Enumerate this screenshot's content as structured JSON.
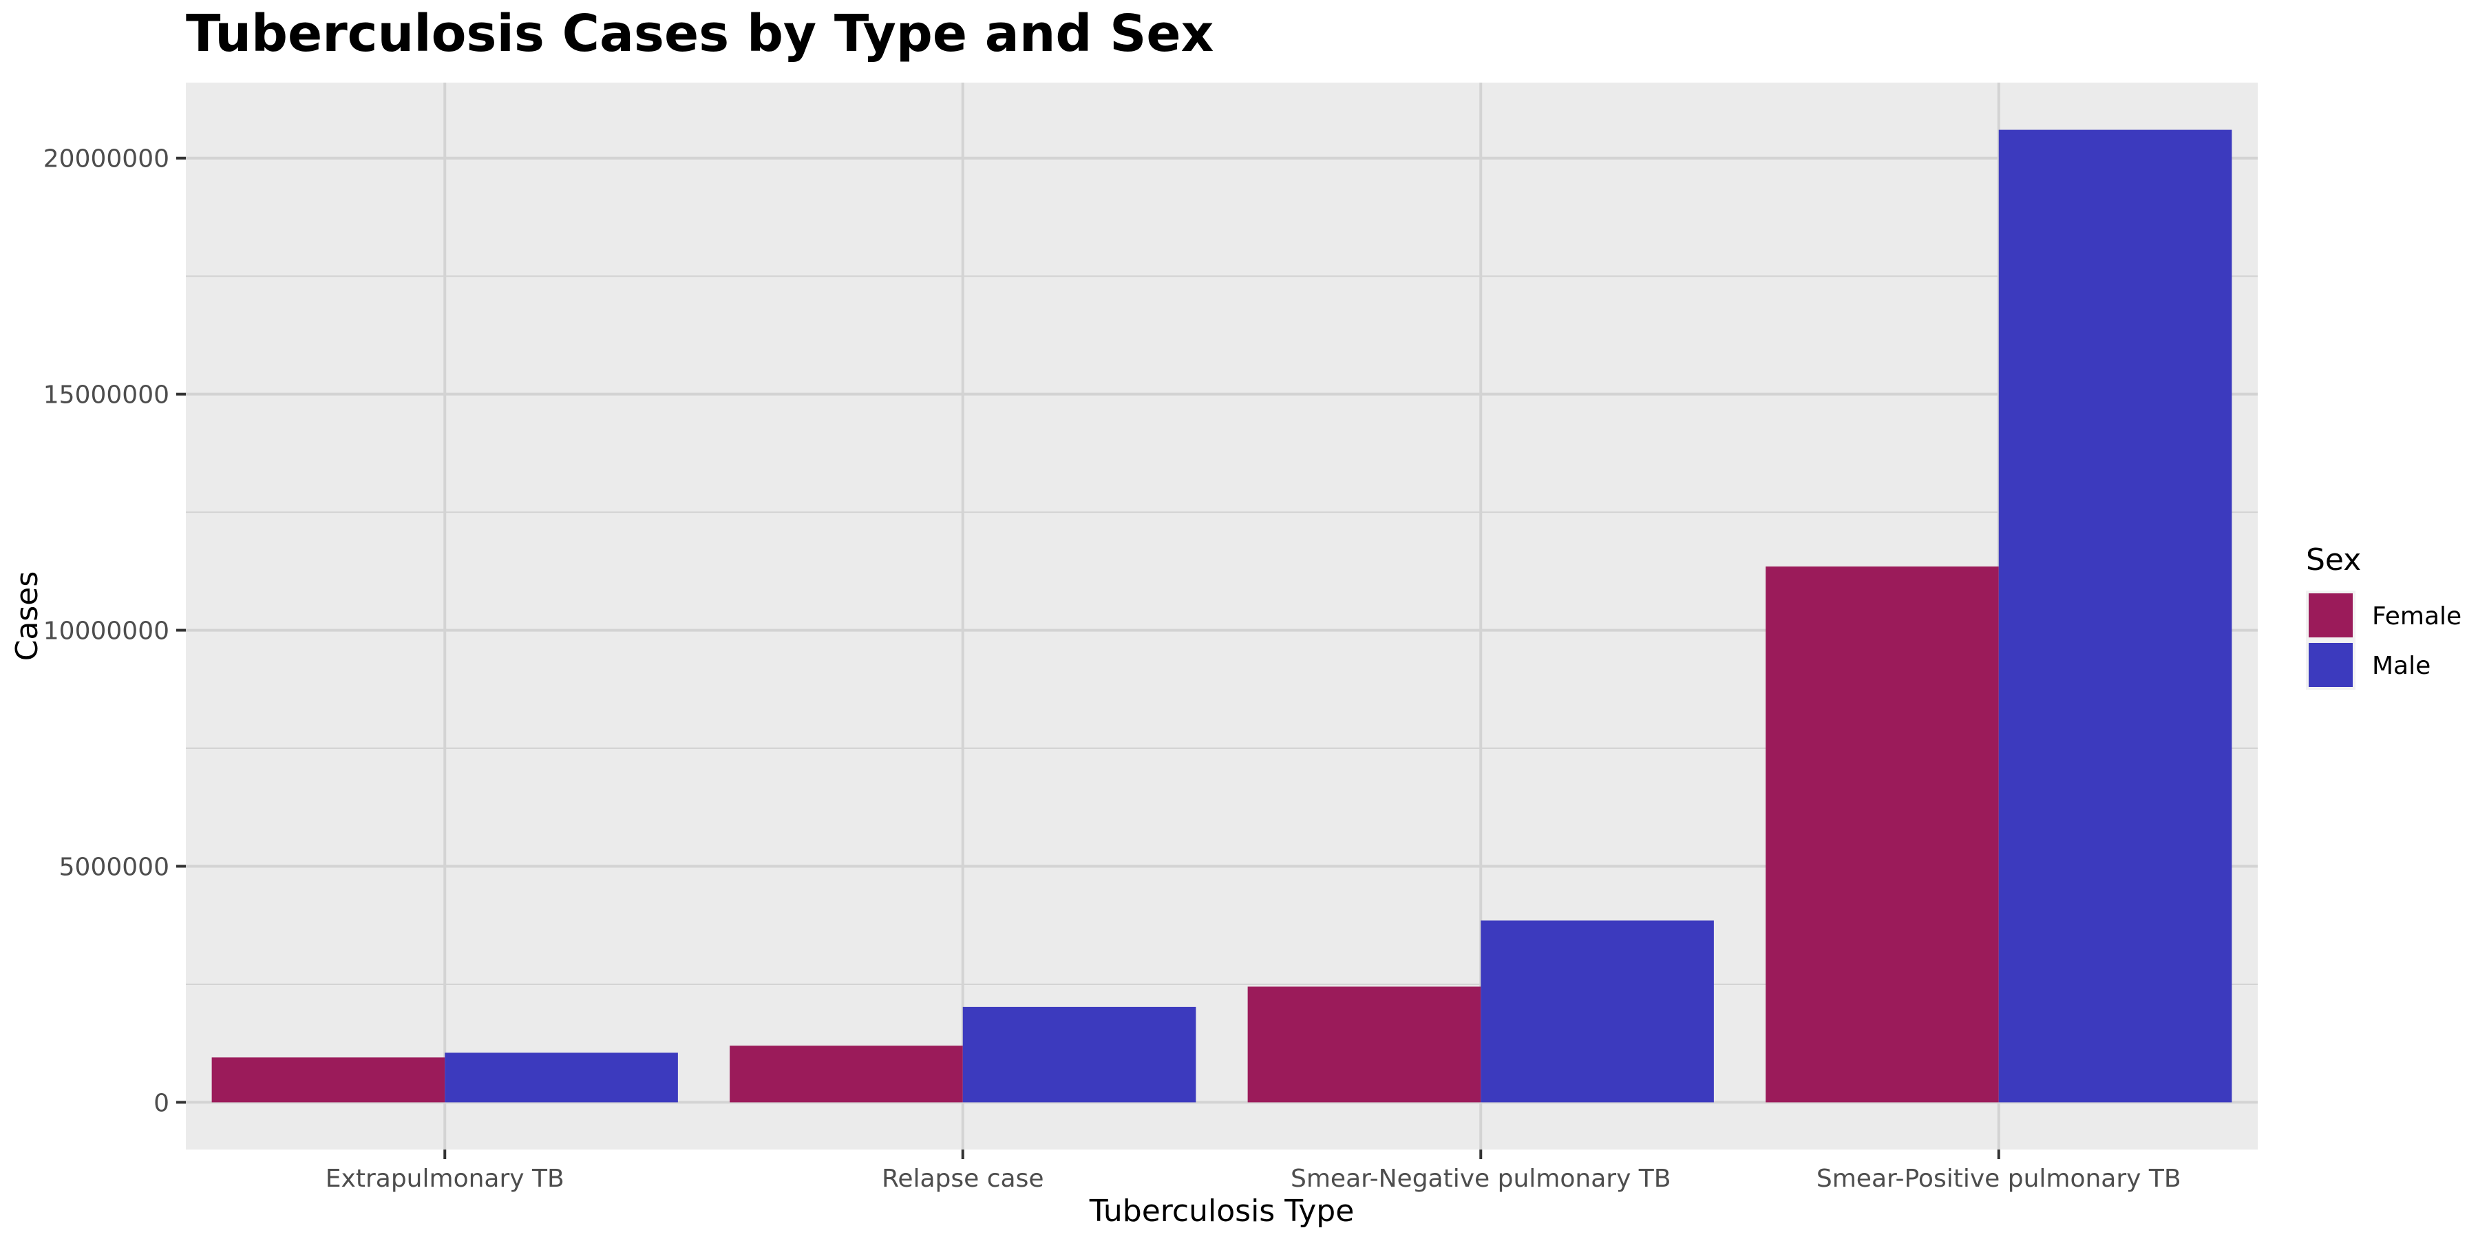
{
  "chart_data": {
    "type": "bar",
    "title": "Tuberculosis Cases by Type and Sex",
    "xlabel": "Tuberculosis Type",
    "ylabel": "Cases",
    "categories": [
      "Extrapulmonary TB",
      "Relapse case",
      "Smear-Negative pulmonary TB",
      "Smear-Positive pulmonary TB"
    ],
    "series": [
      {
        "name": "Female",
        "color": "#9B1B5A",
        "values": [
          950000,
          1200000,
          2450000,
          11350000
        ]
      },
      {
        "name": "Male",
        "color": "#3C3ABE",
        "values": [
          1050000,
          2020000,
          3850000,
          20600000
        ]
      }
    ],
    "ylim": [
      -1000000,
      21600000
    ],
    "yticks": [
      0,
      5000000,
      10000000,
      15000000,
      20000000
    ],
    "ytick_labels": [
      "0",
      "5000000",
      "10000000",
      "15000000",
      "20000000"
    ],
    "grid": true,
    "legend": {
      "title": "Sex",
      "position": "right"
    },
    "panel_background": "#EBEBEB",
    "grid_color": "#D3D3D3"
  }
}
